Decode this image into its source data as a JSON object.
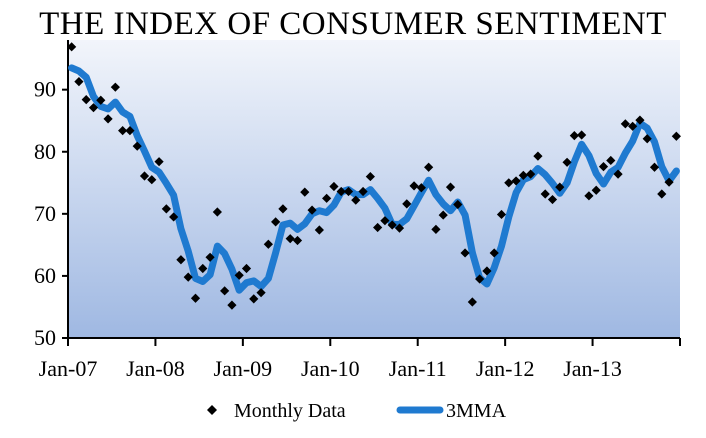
{
  "chart_data": {
    "type": "line",
    "title": "THE INDEX OF CONSUMER SENTIMENT",
    "xlabel": "",
    "ylabel": "",
    "ylim": [
      50,
      98
    ],
    "y_ticks": [
      50,
      60,
      70,
      80,
      90
    ],
    "x_tick_labels": [
      "Jan-07",
      "Jan-08",
      "Jan-09",
      "Jan-10",
      "Jan-11",
      "Jan-12",
      "Jan-13"
    ],
    "grid": false,
    "legend_position": "bottom",
    "background_gradient": [
      "#f2f5fb",
      "#9fb8e2"
    ],
    "series": [
      {
        "name": "Monthly Data",
        "style": "diamond-markers",
        "color": "#000000",
        "x": [
          "2007-01",
          "2007-02",
          "2007-03",
          "2007-04",
          "2007-05",
          "2007-06",
          "2007-07",
          "2007-08",
          "2007-09",
          "2007-10",
          "2007-11",
          "2007-12",
          "2008-01",
          "2008-02",
          "2008-03",
          "2008-04",
          "2008-05",
          "2008-06",
          "2008-07",
          "2008-08",
          "2008-09",
          "2008-10",
          "2008-11",
          "2008-12",
          "2009-01",
          "2009-02",
          "2009-03",
          "2009-04",
          "2009-05",
          "2009-06",
          "2009-07",
          "2009-08",
          "2009-09",
          "2009-10",
          "2009-11",
          "2009-12",
          "2010-01",
          "2010-02",
          "2010-03",
          "2010-04",
          "2010-05",
          "2010-06",
          "2010-07",
          "2010-08",
          "2010-09",
          "2010-10",
          "2010-11",
          "2010-12",
          "2011-01",
          "2011-02",
          "2011-03",
          "2011-04",
          "2011-05",
          "2011-06",
          "2011-07",
          "2011-08",
          "2011-09",
          "2011-10",
          "2011-11",
          "2011-12",
          "2012-01",
          "2012-02",
          "2012-03",
          "2012-04",
          "2012-05",
          "2012-06",
          "2012-07",
          "2012-08",
          "2012-09",
          "2012-10",
          "2012-11",
          "2012-12",
          "2013-01",
          "2013-02",
          "2013-03",
          "2013-04",
          "2013-05",
          "2013-06",
          "2013-07",
          "2013-08",
          "2013-09",
          "2013-10",
          "2013-11",
          "2013-12"
        ],
        "values": [
          96.9,
          91.3,
          88.4,
          87.1,
          88.3,
          85.3,
          90.4,
          83.4,
          83.4,
          80.9,
          76.1,
          75.5,
          78.4,
          70.8,
          69.5,
          62.6,
          59.8,
          56.4,
          61.2,
          63.0,
          70.3,
          57.6,
          55.3,
          60.1,
          61.2,
          56.3,
          57.3,
          65.1,
          68.7,
          70.8,
          66.0,
          65.7,
          73.5,
          70.6,
          67.4,
          72.5,
          74.4,
          73.6,
          73.6,
          72.2,
          73.6,
          76.0,
          67.8,
          68.9,
          68.2,
          67.7,
          71.6,
          74.5,
          74.2,
          77.5,
          67.5,
          69.8,
          74.3,
          71.5,
          63.7,
          55.8,
          59.5,
          60.8,
          63.7,
          69.9,
          75.0,
          75.3,
          76.2,
          76.4,
          79.3,
          73.2,
          72.3,
          74.3,
          78.3,
          82.6,
          82.7,
          72.9,
          73.8,
          77.6,
          78.6,
          76.4,
          84.5,
          84.1,
          85.1,
          82.1,
          77.5,
          73.2,
          75.1,
          82.5
        ]
      },
      {
        "name": "3MMA",
        "style": "thick-line",
        "color": "#1f7ad0",
        "x": [
          "2007-01",
          "2007-02",
          "2007-03",
          "2007-04",
          "2007-05",
          "2007-06",
          "2007-07",
          "2007-08",
          "2007-09",
          "2007-10",
          "2007-11",
          "2007-12",
          "2008-01",
          "2008-02",
          "2008-03",
          "2008-04",
          "2008-05",
          "2008-06",
          "2008-07",
          "2008-08",
          "2008-09",
          "2008-10",
          "2008-11",
          "2008-12",
          "2009-01",
          "2009-02",
          "2009-03",
          "2009-04",
          "2009-05",
          "2009-06",
          "2009-07",
          "2009-08",
          "2009-09",
          "2009-10",
          "2009-11",
          "2009-12",
          "2010-01",
          "2010-02",
          "2010-03",
          "2010-04",
          "2010-05",
          "2010-06",
          "2010-07",
          "2010-08",
          "2010-09",
          "2010-10",
          "2010-11",
          "2010-12",
          "2011-01",
          "2011-02",
          "2011-03",
          "2011-04",
          "2011-05",
          "2011-06",
          "2011-07",
          "2011-08",
          "2011-09",
          "2011-10",
          "2011-11",
          "2011-12",
          "2012-01",
          "2012-02",
          "2012-03",
          "2012-04",
          "2012-05",
          "2012-06",
          "2012-07",
          "2012-08",
          "2012-09",
          "2012-10",
          "2012-11",
          "2012-12",
          "2013-01",
          "2013-02",
          "2013-03",
          "2013-04",
          "2013-05",
          "2013-06",
          "2013-07",
          "2013-08",
          "2013-09",
          "2013-10",
          "2013-11",
          "2013-12"
        ],
        "values": [
          93.5,
          93.0,
          92.0,
          88.9,
          87.3,
          86.9,
          88.0,
          86.4,
          85.7,
          82.6,
          80.1,
          77.5,
          76.7,
          74.9,
          73.0,
          67.6,
          64.0,
          59.6,
          59.1,
          60.2,
          64.8,
          63.6,
          61.1,
          57.7,
          58.9,
          59.2,
          58.3,
          59.6,
          63.7,
          68.2,
          68.5,
          67.5,
          68.4,
          70.0,
          70.5,
          70.2,
          71.4,
          73.5,
          73.9,
          73.1,
          73.1,
          73.9,
          72.5,
          70.9,
          68.3,
          68.3,
          69.2,
          71.3,
          73.4,
          75.4,
          73.1,
          71.6,
          70.5,
          71.9,
          69.8,
          63.7,
          59.7,
          58.7,
          61.3,
          64.8,
          69.5,
          73.4,
          75.5,
          76.0,
          77.3,
          76.3,
          74.9,
          73.3,
          75.0,
          78.4,
          81.2,
          79.4,
          76.5,
          74.8,
          76.7,
          77.5,
          79.8,
          81.7,
          84.6,
          83.8,
          81.6,
          77.6,
          75.3,
          76.9
        ]
      }
    ]
  }
}
